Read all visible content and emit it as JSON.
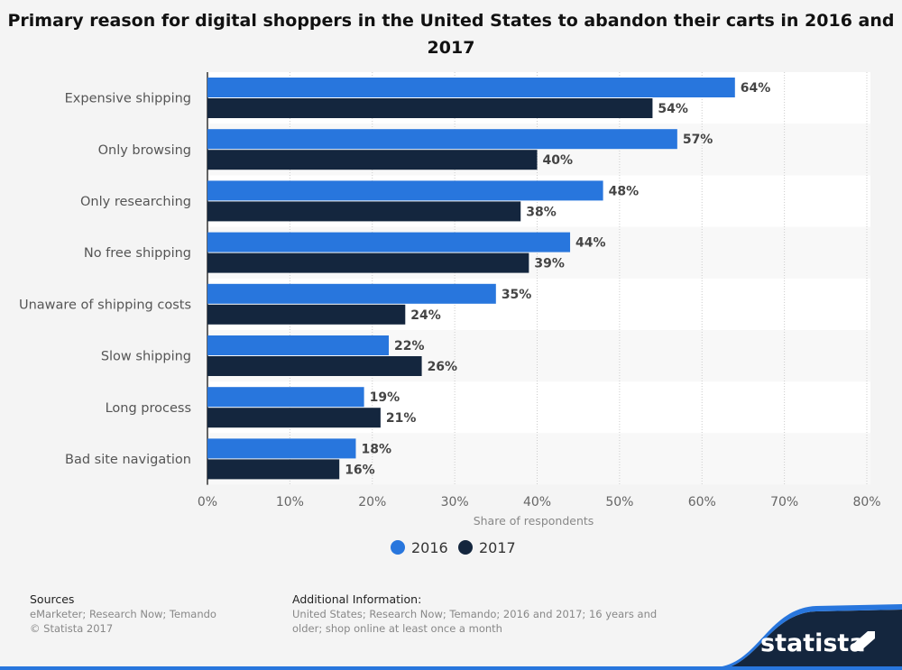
{
  "chart_data": {
    "type": "bar",
    "orientation": "horizontal",
    "title": "Primary reason for digital shoppers in the United States to abandon their carts in 2016 and 2017",
    "categories": [
      "Expensive shipping",
      "Only browsing",
      "Only researching",
      "No free shipping",
      "Unaware of shipping costs",
      "Slow shipping",
      "Long process",
      "Bad site navigation"
    ],
    "series": [
      {
        "name": "2016",
        "color": "#2876dd",
        "values": [
          64,
          57,
          48,
          44,
          35,
          22,
          19,
          18
        ]
      },
      {
        "name": "2017",
        "color": "#14263e",
        "values": [
          54,
          40,
          38,
          39,
          24,
          26,
          21,
          16
        ]
      }
    ],
    "xlabel": "Share of respondents",
    "xlim": [
      0,
      80
    ],
    "xticks": [
      "0%",
      "10%",
      "20%",
      "30%",
      "40%",
      "50%",
      "60%",
      "70%",
      "80%"
    ],
    "grid": true,
    "legend": "bottom"
  },
  "footer": {
    "sources_title": "Sources",
    "sources": "eMarketer; Research Now; Temando",
    "copyright": "© Statista 2017",
    "info_title": "Additional Information:",
    "info": "United States; Research Now; Temando; 2016 and 2017; 16 years and older; shop online at least once a month",
    "logo": "statista"
  }
}
